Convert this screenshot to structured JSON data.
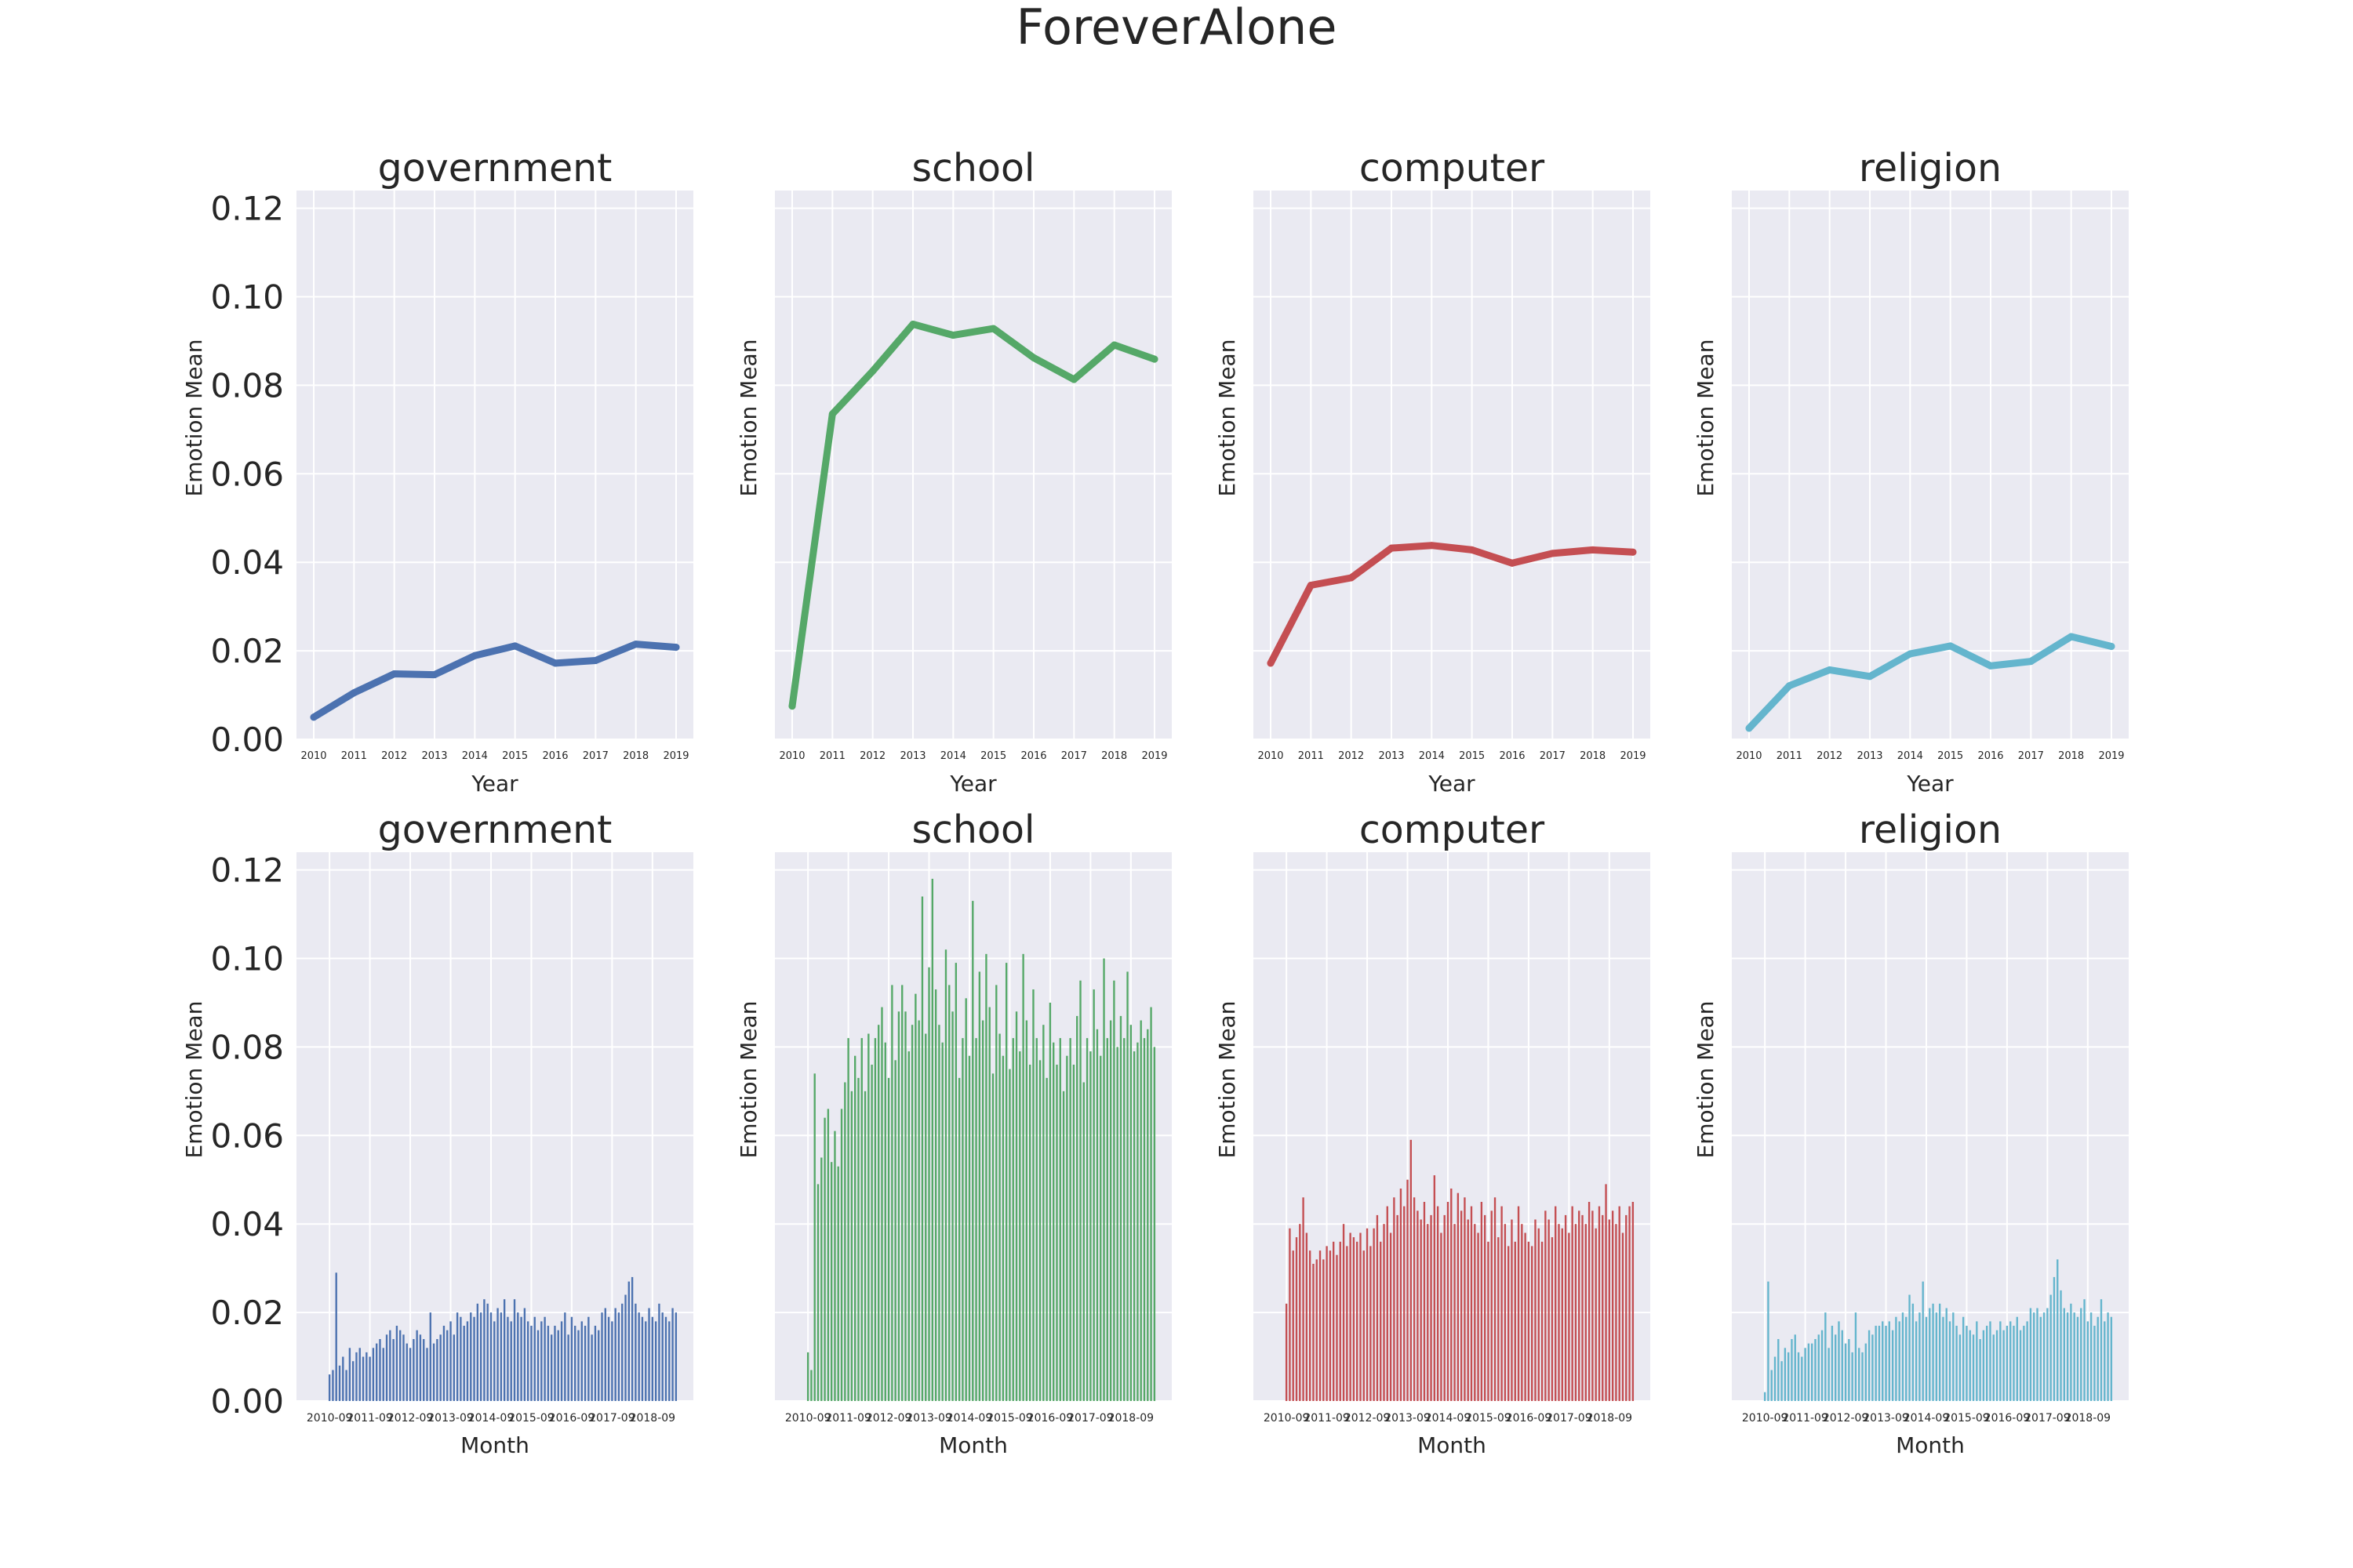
{
  "figure": {
    "title": "ForeverAlone"
  },
  "chart_data": [
    {
      "type": "line",
      "title": "government",
      "xlabel": "Year",
      "ylabel": "Emotion Mean",
      "color": "#4c72b0",
      "ylim": [
        0,
        0.124
      ],
      "yticks": [
        "0.00",
        "0.02",
        "0.04",
        "0.06",
        "0.08",
        "0.10",
        "0.12"
      ],
      "x": [
        "2010",
        "2011",
        "2012",
        "2013",
        "2014",
        "2015",
        "2016",
        "2017",
        "2018",
        "2019"
      ],
      "values": [
        0.005,
        0.0105,
        0.0148,
        0.0146,
        0.0189,
        0.0211,
        0.0172,
        0.0178,
        0.0215,
        0.0208
      ]
    },
    {
      "type": "line",
      "title": "school",
      "xlabel": "Year",
      "ylabel": "Emotion Mean",
      "color": "#55a868",
      "ylim": [
        0,
        0.124
      ],
      "x": [
        "2010",
        "2011",
        "2012",
        "2013",
        "2014",
        "2015",
        "2016",
        "2017",
        "2018",
        "2019"
      ],
      "values": [
        0.0075,
        0.0735,
        0.0832,
        0.0938,
        0.0913,
        0.0928,
        0.0862,
        0.0813,
        0.0891,
        0.0859
      ]
    },
    {
      "type": "line",
      "title": "computer",
      "xlabel": "Year",
      "ylabel": "Emotion Mean",
      "color": "#c44e52",
      "ylim": [
        0,
        0.124
      ],
      "x": [
        "2010",
        "2011",
        "2012",
        "2013",
        "2014",
        "2015",
        "2016",
        "2017",
        "2018",
        "2019"
      ],
      "values": [
        0.0172,
        0.0348,
        0.0365,
        0.0432,
        0.0438,
        0.0428,
        0.0398,
        0.042,
        0.0428,
        0.0423
      ]
    },
    {
      "type": "line",
      "title": "religion",
      "xlabel": "Year",
      "ylabel": "Emotion Mean",
      "color": "#64b5cd",
      "ylim": [
        0,
        0.124
      ],
      "x": [
        "2010",
        "2011",
        "2012",
        "2013",
        "2014",
        "2015",
        "2016",
        "2017",
        "2018",
        "2019"
      ],
      "values": [
        0.0025,
        0.0121,
        0.0157,
        0.0142,
        0.0193,
        0.0211,
        0.0166,
        0.0176,
        0.0232,
        0.021
      ]
    },
    {
      "type": "bar",
      "title": "government",
      "xlabel": "Month",
      "ylabel": "Emotion Mean",
      "color": "#4c72b0",
      "ylim": [
        0,
        0.124
      ],
      "yticks": [
        "0.00",
        "0.02",
        "0.04",
        "0.06",
        "0.08",
        "0.10",
        "0.12"
      ],
      "xticks": [
        "2010-09",
        "2011-09",
        "2012-09",
        "2013-09",
        "2014-09",
        "2015-09",
        "2016-09",
        "2017-09",
        "2018-09"
      ],
      "x_start": "2010-09",
      "values": [
        0.006,
        0.007,
        0.029,
        0.008,
        0.01,
        0.007,
        0.012,
        0.009,
        0.011,
        0.012,
        0.01,
        0.011,
        0.01,
        0.012,
        0.013,
        0.014,
        0.012,
        0.015,
        0.016,
        0.014,
        0.017,
        0.016,
        0.015,
        0.013,
        0.012,
        0.014,
        0.016,
        0.015,
        0.014,
        0.012,
        0.02,
        0.013,
        0.014,
        0.015,
        0.017,
        0.016,
        0.018,
        0.015,
        0.02,
        0.019,
        0.017,
        0.018,
        0.02,
        0.019,
        0.022,
        0.02,
        0.023,
        0.022,
        0.02,
        0.018,
        0.021,
        0.02,
        0.023,
        0.019,
        0.018,
        0.023,
        0.02,
        0.019,
        0.021,
        0.018,
        0.017,
        0.019,
        0.016,
        0.018,
        0.019,
        0.017,
        0.015,
        0.017,
        0.016,
        0.018,
        0.02,
        0.015,
        0.019,
        0.017,
        0.016,
        0.018,
        0.017,
        0.019,
        0.015,
        0.017,
        0.016,
        0.02,
        0.021,
        0.019,
        0.018,
        0.021,
        0.02,
        0.022,
        0.024,
        0.027,
        0.028,
        0.022,
        0.02,
        0.019,
        0.018,
        0.021,
        0.019,
        0.018,
        0.022,
        0.02,
        0.019,
        0.018,
        0.021,
        0.02
      ]
    },
    {
      "type": "bar",
      "title": "school",
      "xlabel": "Month",
      "ylabel": "Emotion Mean",
      "color": "#55a868",
      "ylim": [
        0,
        0.124
      ],
      "xticks": [
        "2010-09",
        "2011-09",
        "2012-09",
        "2013-09",
        "2014-09",
        "2015-09",
        "2016-09",
        "2017-09",
        "2018-09"
      ],
      "x_start": "2010-09",
      "values": [
        0.011,
        0.007,
        0.074,
        0.049,
        0.055,
        0.064,
        0.066,
        0.054,
        0.061,
        0.053,
        0.066,
        0.072,
        0.082,
        0.07,
        0.078,
        0.073,
        0.082,
        0.07,
        0.083,
        0.076,
        0.082,
        0.085,
        0.089,
        0.081,
        0.073,
        0.094,
        0.077,
        0.088,
        0.094,
        0.088,
        0.079,
        0.085,
        0.092,
        0.086,
        0.114,
        0.083,
        0.098,
        0.118,
        0.093,
        0.085,
        0.081,
        0.102,
        0.094,
        0.088,
        0.099,
        0.073,
        0.082,
        0.091,
        0.078,
        0.113,
        0.082,
        0.097,
        0.086,
        0.101,
        0.089,
        0.074,
        0.094,
        0.083,
        0.078,
        0.099,
        0.075,
        0.082,
        0.088,
        0.079,
        0.101,
        0.086,
        0.076,
        0.093,
        0.082,
        0.077,
        0.085,
        0.073,
        0.09,
        0.081,
        0.076,
        0.082,
        0.07,
        0.078,
        0.082,
        0.076,
        0.087,
        0.095,
        0.072,
        0.082,
        0.079,
        0.093,
        0.084,
        0.078,
        0.1,
        0.082,
        0.086,
        0.095,
        0.08,
        0.087,
        0.082,
        0.097,
        0.085,
        0.079,
        0.081,
        0.086,
        0.082,
        0.084,
        0.089,
        0.08
      ]
    },
    {
      "type": "bar",
      "title": "computer",
      "xlabel": "Month",
      "ylabel": "Emotion Mean",
      "color": "#c44e52",
      "ylim": [
        0,
        0.124
      ],
      "xticks": [
        "2010-09",
        "2011-09",
        "2012-09",
        "2013-09",
        "2014-09",
        "2015-09",
        "2016-09",
        "2017-09",
        "2018-09"
      ],
      "x_start": "2010-09",
      "values": [
        0.022,
        0.039,
        0.034,
        0.037,
        0.04,
        0.046,
        0.038,
        0.034,
        0.031,
        0.032,
        0.034,
        0.032,
        0.035,
        0.034,
        0.036,
        0.033,
        0.036,
        0.04,
        0.035,
        0.038,
        0.037,
        0.036,
        0.038,
        0.034,
        0.039,
        0.035,
        0.039,
        0.042,
        0.036,
        0.04,
        0.044,
        0.038,
        0.046,
        0.042,
        0.048,
        0.044,
        0.05,
        0.059,
        0.046,
        0.043,
        0.041,
        0.045,
        0.04,
        0.042,
        0.051,
        0.044,
        0.038,
        0.042,
        0.045,
        0.048,
        0.04,
        0.047,
        0.043,
        0.046,
        0.041,
        0.044,
        0.04,
        0.038,
        0.045,
        0.042,
        0.036,
        0.043,
        0.046,
        0.037,
        0.044,
        0.04,
        0.035,
        0.041,
        0.036,
        0.044,
        0.04,
        0.038,
        0.036,
        0.035,
        0.041,
        0.039,
        0.036,
        0.043,
        0.041,
        0.037,
        0.044,
        0.04,
        0.039,
        0.042,
        0.038,
        0.044,
        0.04,
        0.043,
        0.042,
        0.04,
        0.045,
        0.043,
        0.039,
        0.044,
        0.042,
        0.049,
        0.041,
        0.043,
        0.04,
        0.044,
        0.038,
        0.042,
        0.044,
        0.045
      ]
    },
    {
      "type": "bar",
      "title": "religion",
      "xlabel": "Month",
      "ylabel": "Emotion Mean",
      "color": "#64b5cd",
      "ylim": [
        0,
        0.124
      ],
      "xticks": [
        "2010-09",
        "2011-09",
        "2012-09",
        "2013-09",
        "2014-09",
        "2015-09",
        "2016-09",
        "2017-09",
        "2018-09"
      ],
      "x_start": "2010-09",
      "values": [
        0.002,
        0.027,
        0.007,
        0.01,
        0.014,
        0.009,
        0.012,
        0.011,
        0.014,
        0.015,
        0.011,
        0.01,
        0.012,
        0.013,
        0.013,
        0.014,
        0.015,
        0.016,
        0.02,
        0.012,
        0.017,
        0.015,
        0.018,
        0.016,
        0.013,
        0.014,
        0.011,
        0.02,
        0.012,
        0.011,
        0.013,
        0.016,
        0.015,
        0.017,
        0.017,
        0.018,
        0.017,
        0.018,
        0.016,
        0.019,
        0.018,
        0.02,
        0.019,
        0.024,
        0.022,
        0.018,
        0.02,
        0.027,
        0.019,
        0.021,
        0.022,
        0.02,
        0.022,
        0.019,
        0.021,
        0.018,
        0.02,
        0.017,
        0.015,
        0.019,
        0.017,
        0.016,
        0.015,
        0.018,
        0.014,
        0.016,
        0.017,
        0.018,
        0.015,
        0.016,
        0.018,
        0.016,
        0.017,
        0.018,
        0.017,
        0.019,
        0.016,
        0.017,
        0.018,
        0.021,
        0.02,
        0.021,
        0.019,
        0.02,
        0.021,
        0.024,
        0.028,
        0.032,
        0.025,
        0.021,
        0.02,
        0.022,
        0.02,
        0.019,
        0.021,
        0.023,
        0.018,
        0.02,
        0.017,
        0.019,
        0.023,
        0.018,
        0.02,
        0.019
      ]
    }
  ]
}
